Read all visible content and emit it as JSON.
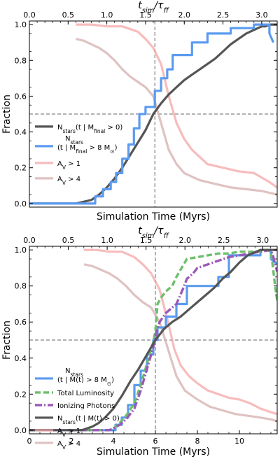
{
  "chart_data": [
    {
      "type": "line",
      "top_axis": {
        "label": "t_sim/τ_ff",
        "ticks": [
          "0.0",
          "0.5",
          "1.0",
          "1.5",
          "2.0",
          "2.5",
          "3.0"
        ],
        "values": [
          0,
          0.5,
          1.0,
          1.5,
          2.0,
          2.5,
          3.0
        ]
      },
      "xlabel": "Simulation Time (Myrs)",
      "xticks": [],
      "ylabel": "Fraction",
      "yticks": [
        "0.0",
        "0.2",
        "0.4",
        "0.6",
        "0.8",
        "1.0"
      ],
      "xlim_tff": [
        0,
        3.2
      ],
      "ylim": [
        0,
        1.02
      ],
      "vline_tff": 1.62,
      "hline_y": 0.5,
      "legend_position": "lower-left",
      "series": [
        {
          "name": "N_stars(t | M_final > 0)",
          "color": "#555555",
          "width": 3.2,
          "dash": "",
          "alpha": 1,
          "x": [
            0.0,
            0.6,
            0.8,
            0.9,
            1.0,
            1.1,
            1.2,
            1.3,
            1.4,
            1.5,
            1.6,
            1.7,
            1.8,
            1.9,
            2.0,
            2.1,
            2.2,
            2.3,
            2.4,
            2.5,
            2.6,
            2.7,
            2.8,
            2.9,
            3.0,
            3.05,
            3.1,
            3.15,
            3.2
          ],
          "y": [
            0.0,
            0.0,
            0.02,
            0.05,
            0.09,
            0.14,
            0.2,
            0.27,
            0.34,
            0.41,
            0.5,
            0.56,
            0.61,
            0.65,
            0.69,
            0.72,
            0.75,
            0.78,
            0.81,
            0.85,
            0.89,
            0.92,
            0.95,
            0.97,
            0.99,
            0.99,
            1.0,
            1.0,
            1.0
          ]
        },
        {
          "name": "N_stars(t | M_final > 8 M_⊙)",
          "color": "#5b9bf0",
          "width": 3.2,
          "dash": "",
          "alpha": 1,
          "x": [
            0.0,
            0.85,
            0.85,
            0.95,
            0.95,
            1.05,
            1.05,
            1.12,
            1.12,
            1.2,
            1.2,
            1.28,
            1.28,
            1.35,
            1.35,
            1.42,
            1.42,
            1.5,
            1.5,
            1.62,
            1.62,
            1.7,
            1.7,
            1.78,
            1.78,
            1.85,
            1.85,
            2.1,
            2.1,
            2.3,
            2.3,
            2.6,
            2.6,
            2.9,
            2.9,
            3.1,
            3.1,
            3.15
          ],
          "y": [
            0.0,
            0.0,
            0.04,
            0.04,
            0.08,
            0.08,
            0.12,
            0.12,
            0.17,
            0.17,
            0.25,
            0.25,
            0.33,
            0.33,
            0.42,
            0.42,
            0.5,
            0.5,
            0.54,
            0.54,
            0.63,
            0.63,
            0.7,
            0.7,
            0.75,
            0.75,
            0.83,
            0.83,
            0.9,
            0.9,
            0.95,
            0.95,
            0.98,
            0.98,
            1.0,
            1.0,
            0.95,
            0.9
          ]
        },
        {
          "name": "A_V > 1",
          "color": "#f4a6a6",
          "width": 3.2,
          "dash": "",
          "alpha": 0.75,
          "x": [
            0.6,
            0.8,
            1.0,
            1.2,
            1.4,
            1.5,
            1.6,
            1.7,
            1.8,
            1.9,
            2.0,
            2.1,
            2.2,
            2.3,
            2.5,
            2.7,
            2.9,
            3.1,
            3.2
          ],
          "y": [
            1.0,
            1.0,
            0.99,
            0.99,
            0.96,
            0.92,
            0.87,
            0.78,
            0.6,
            0.45,
            0.36,
            0.3,
            0.26,
            0.22,
            0.2,
            0.18,
            0.17,
            0.12,
            0.09
          ]
        },
        {
          "name": "A_V > 4",
          "color": "#d9b7b7",
          "width": 3.2,
          "dash": "",
          "alpha": 0.85,
          "x": [
            0.6,
            0.7,
            0.8,
            0.9,
            1.0,
            1.1,
            1.2,
            1.3,
            1.4,
            1.5,
            1.6,
            1.7,
            1.8,
            1.9,
            2.0,
            2.2,
            2.4,
            2.6,
            2.8,
            3.0,
            3.2
          ],
          "y": [
            0.92,
            0.91,
            0.89,
            0.87,
            0.84,
            0.8,
            0.75,
            0.71,
            0.68,
            0.65,
            0.6,
            0.45,
            0.3,
            0.22,
            0.17,
            0.13,
            0.11,
            0.09,
            0.08,
            0.07,
            0.05
          ]
        }
      ],
      "legend": [
        {
          "label": "N_stars(t | M_final > 0)",
          "series": 0
        },
        {
          "label": "N_stars (t | M_final > 8 M_⊙)",
          "series": 1
        },
        {
          "label": "A_V > 1",
          "series": 2
        },
        {
          "label": "A_V > 4",
          "series": 3
        }
      ]
    },
    {
      "type": "line",
      "top_axis": {
        "label": "t_sim/τ_ff",
        "ticks": [
          "0.0",
          "0.5",
          "1.0",
          "1.5",
          "2.0",
          "2.5",
          "3.0"
        ],
        "values": [
          0,
          0.5,
          1.0,
          1.5,
          2.0,
          2.5,
          3.0
        ]
      },
      "xlabel": "Simulation Time (Myrs)",
      "xticks": [
        "0",
        "2",
        "4",
        "6",
        "8",
        "10"
      ],
      "ylabel": "Fraction",
      "yticks": [
        "0.0",
        "0.2",
        "0.4",
        "0.6",
        "0.8",
        "1.0"
      ],
      "xlim": [
        0,
        11.8
      ],
      "ylim": [
        0,
        1.02
      ],
      "vline": 6.0,
      "hline_y": 0.5,
      "legend_position": "lower-left",
      "series": [
        {
          "name": "N_stars (t | M(t) > 8 M_⊙)",
          "color": "#5b9bf0",
          "width": 3.2,
          "dash": "",
          "alpha": 1,
          "x": [
            0,
            4.1,
            4.1,
            4.4,
            4.4,
            4.7,
            4.7,
            5.0,
            5.0,
            5.3,
            5.3,
            5.6,
            5.6,
            5.9,
            5.9,
            6.1,
            6.1,
            6.5,
            6.5,
            7.0,
            7.0,
            7.5,
            7.5,
            9.0,
            9.0,
            9.5,
            9.5,
            11.0,
            11.0,
            11.5,
            11.5,
            11.8
          ],
          "y": [
            0,
            0,
            0.03,
            0.03,
            0.07,
            0.07,
            0.14,
            0.14,
            0.25,
            0.25,
            0.33,
            0.33,
            0.42,
            0.42,
            0.5,
            0.5,
            0.57,
            0.57,
            0.63,
            0.63,
            0.7,
            0.7,
            0.8,
            0.8,
            0.85,
            0.85,
            0.97,
            0.97,
            1.0,
            1.0,
            0.95,
            0.92
          ]
        },
        {
          "name": "Total Luminosity",
          "color": "#6cbf6c",
          "width": 3.4,
          "dash": "8,4",
          "alpha": 1,
          "x": [
            0,
            3.8,
            4.0,
            4.3,
            4.6,
            5.0,
            5.3,
            5.6,
            5.9,
            6.0,
            6.1,
            6.3,
            6.5,
            6.8,
            7.0,
            7.3,
            7.5,
            8.0,
            8.5,
            9.0,
            9.5,
            10.0,
            10.5,
            11.0,
            11.3,
            11.5,
            11.6,
            11.7,
            11.8
          ],
          "y": [
            0,
            0,
            0.01,
            0.04,
            0.08,
            0.15,
            0.25,
            0.37,
            0.49,
            0.55,
            0.7,
            0.74,
            0.77,
            0.8,
            0.85,
            0.91,
            0.95,
            0.96,
            0.97,
            0.98,
            0.98,
            0.99,
            0.99,
            0.99,
            1.0,
            0.99,
            0.9,
            0.8,
            0.72
          ]
        },
        {
          "name": "Ionizing Photons",
          "color": "#9b59b6",
          "width": 3.4,
          "dash": "10,3,2,3",
          "alpha": 1,
          "x": [
            0,
            3.8,
            4.0,
            4.3,
            4.6,
            5.0,
            5.3,
            5.6,
            5.9,
            6.0,
            6.2,
            6.5,
            7.0,
            7.3,
            7.5,
            7.8,
            8.0,
            8.5,
            9.0,
            9.5,
            10.0,
            10.5,
            11.0,
            11.5,
            11.6,
            11.7,
            11.8
          ],
          "y": [
            0,
            0,
            0.01,
            0.03,
            0.06,
            0.12,
            0.22,
            0.34,
            0.46,
            0.52,
            0.6,
            0.65,
            0.7,
            0.78,
            0.84,
            0.87,
            0.9,
            0.92,
            0.94,
            0.96,
            0.97,
            0.98,
            0.99,
            1.0,
            0.97,
            0.92,
            0.88
          ]
        },
        {
          "name": "N_stars(t | M(t) > 0)",
          "color": "#555555",
          "width": 3.2,
          "dash": "",
          "alpha": 1,
          "x": [
            0,
            2.5,
            3.0,
            3.3,
            3.6,
            4.0,
            4.4,
            4.8,
            5.2,
            5.6,
            6.0,
            6.4,
            6.8,
            7.2,
            7.6,
            8.0,
            8.4,
            8.8,
            9.2,
            9.6,
            10.0,
            10.4,
            10.8,
            11.0,
            11.4,
            11.8
          ],
          "y": [
            0,
            0,
            0.02,
            0.04,
            0.07,
            0.12,
            0.19,
            0.27,
            0.34,
            0.42,
            0.5,
            0.56,
            0.6,
            0.63,
            0.67,
            0.71,
            0.75,
            0.79,
            0.84,
            0.88,
            0.93,
            0.97,
            0.99,
            1.0,
            1.0,
            1.0
          ]
        },
        {
          "name": "A_V > 1",
          "color": "#f4a6a6",
          "width": 3.2,
          "dash": "",
          "alpha": 0.75,
          "x": [
            2.6,
            3.2,
            3.8,
            4.4,
            5.0,
            5.4,
            5.8,
            6.2,
            6.6,
            6.9,
            7.2,
            7.6,
            8.0,
            8.5,
            9.0,
            9.5,
            10.0,
            10.5,
            11.0,
            11.5,
            11.8
          ],
          "y": [
            1.0,
            1.0,
            0.99,
            0.99,
            0.96,
            0.92,
            0.87,
            0.78,
            0.6,
            0.45,
            0.36,
            0.3,
            0.26,
            0.22,
            0.2,
            0.18,
            0.17,
            0.15,
            0.12,
            0.1,
            0.09
          ]
        },
        {
          "name": "A_V > 4",
          "color": "#d9b7b7",
          "width": 3.2,
          "dash": "",
          "alpha": 0.85,
          "x": [
            2.6,
            3.0,
            3.4,
            3.8,
            4.2,
            4.6,
            5.0,
            5.4,
            5.8,
            6.2,
            6.6,
            7.0,
            7.4,
            8.0,
            8.6,
            9.2,
            9.8,
            10.4,
            11.0,
            11.5,
            11.8
          ],
          "y": [
            0.92,
            0.91,
            0.89,
            0.87,
            0.84,
            0.8,
            0.75,
            0.71,
            0.68,
            0.6,
            0.45,
            0.3,
            0.22,
            0.17,
            0.13,
            0.11,
            0.09,
            0.08,
            0.07,
            0.06,
            0.05
          ]
        }
      ],
      "legend": [
        {
          "label": "N_stars (t | M(t) > 8 M_⊙)",
          "series": 0
        },
        {
          "label": "Total Luminosity",
          "series": 1
        },
        {
          "label": "Ionizing Photons",
          "series": 2
        },
        {
          "label": "N_stars(t | M(t) > 0)",
          "series": 3
        },
        {
          "label": "A_V > 1",
          "series": 4
        },
        {
          "label": "A_V > 4",
          "series": 5
        }
      ]
    }
  ]
}
